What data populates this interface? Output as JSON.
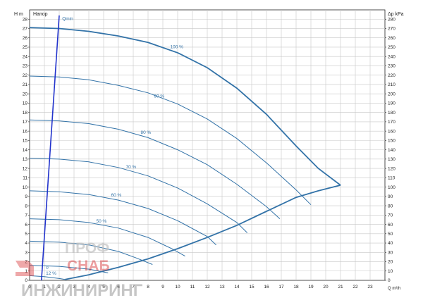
{
  "chart_data": {
    "type": "line",
    "title": "Напор",
    "ylabel_left": "H m",
    "ylabel_right": "Δp kPa",
    "xlabel": "Q m³/h",
    "xlim": [
      0,
      24
    ],
    "ylim_left": [
      0,
      29
    ],
    "ylim_right": [
      0,
      290
    ],
    "x_ticks": [
      0,
      1,
      2,
      3,
      4,
      5,
      6,
      7,
      8,
      9,
      10,
      11,
      12,
      13,
      14,
      15,
      16,
      17,
      18,
      19,
      20,
      21,
      22,
      23
    ],
    "y_ticks_left": [
      0,
      1,
      2,
      3,
      4,
      5,
      6,
      7,
      8,
      9,
      10,
      11,
      12,
      13,
      14,
      15,
      16,
      17,
      18,
      19,
      20,
      21,
      22,
      23,
      24,
      25,
      26,
      27,
      28
    ],
    "y_ticks_right": [
      0,
      10,
      20,
      30,
      40,
      50,
      60,
      70,
      80,
      90,
      100,
      110,
      120,
      130,
      140,
      150,
      160,
      170,
      180,
      190,
      200,
      210,
      220,
      230,
      240,
      250,
      260,
      270,
      280
    ],
    "grid": true,
    "series": [
      {
        "name": "100 %",
        "x": [
          0,
          2,
          4,
          6,
          8,
          10,
          12,
          14,
          16,
          18,
          19.5,
          21
        ],
        "y": [
          27.1,
          27.0,
          26.7,
          26.2,
          25.5,
          24.4,
          22.8,
          20.6,
          17.8,
          14.4,
          12.0,
          10.2
        ]
      },
      {
        "name": "90 %",
        "x": [
          0,
          2,
          4,
          6,
          8,
          10,
          12,
          14,
          16,
          18,
          19
        ],
        "y": [
          21.9,
          21.8,
          21.5,
          20.9,
          20.1,
          18.9,
          17.3,
          15.2,
          12.6,
          9.7,
          8.1
        ]
      },
      {
        "name": "80 %",
        "x": [
          0,
          2,
          4,
          6,
          8,
          10,
          12,
          14,
          16,
          16.9
        ],
        "y": [
          17.2,
          17.1,
          16.8,
          16.2,
          15.3,
          14.0,
          12.4,
          10.3,
          7.9,
          6.6
        ]
      },
      {
        "name": "70 %",
        "x": [
          0,
          2,
          4,
          6,
          8,
          10,
          12,
          14,
          14.7
        ],
        "y": [
          13.1,
          13.0,
          12.7,
          12.1,
          11.2,
          9.9,
          8.2,
          6.2,
          5.1
        ]
      },
      {
        "name": "60 %",
        "x": [
          0,
          2,
          4,
          6,
          8,
          10,
          12,
          12.6
        ],
        "y": [
          9.6,
          9.5,
          9.2,
          8.6,
          7.7,
          6.4,
          4.7,
          3.8
        ]
      },
      {
        "name": "50 %",
        "x": [
          0,
          2,
          4,
          6,
          8,
          9.6,
          10.5
        ],
        "y": [
          6.6,
          6.5,
          6.2,
          5.6,
          4.6,
          3.4,
          2.6
        ]
      },
      {
        "name": "",
        "x": [
          0,
          2,
          4,
          6,
          7.2,
          8.3
        ],
        "y": [
          4.2,
          4.1,
          3.8,
          3.1,
          2.4,
          1.7
        ]
      },
      {
        "name": "",
        "x": [
          0,
          2,
          4,
          5.3
        ],
        "y": [
          1.6,
          1.5,
          1.2,
          0.8
        ]
      },
      {
        "name": "",
        "x": [
          0,
          1,
          2,
          2.4
        ],
        "y": [
          0.5,
          0.4,
          0.2,
          0.1
        ]
      }
    ],
    "min_curve": {
      "x": [
        2.4,
        4,
        6,
        8,
        10,
        12,
        14,
        16,
        18,
        19.5,
        21
      ],
      "y": [
        0.1,
        0.6,
        1.4,
        2.3,
        3.4,
        4.6,
        5.9,
        7.4,
        8.9,
        9.6,
        10.2
      ]
    },
    "qmin_line": {
      "name": "Qmin",
      "x": [
        0.8,
        2.0
      ],
      "y": [
        0,
        28.4
      ]
    },
    "labels": [
      "100 %",
      "90 %",
      "80 %",
      "70 %",
      "60 %",
      "50 %",
      "Qmin",
      "0",
      "12 %"
    ]
  },
  "watermark": {
    "line1": "ПРОФ",
    "line2": "СНАБ",
    "line3": "ИНЖИНИРИНГ"
  },
  "colors": {
    "curve": "#3373a8",
    "qmin": "#2233cc",
    "grid": "#c8c8c8",
    "axis": "#222222",
    "watermark": "#d9383a"
  }
}
